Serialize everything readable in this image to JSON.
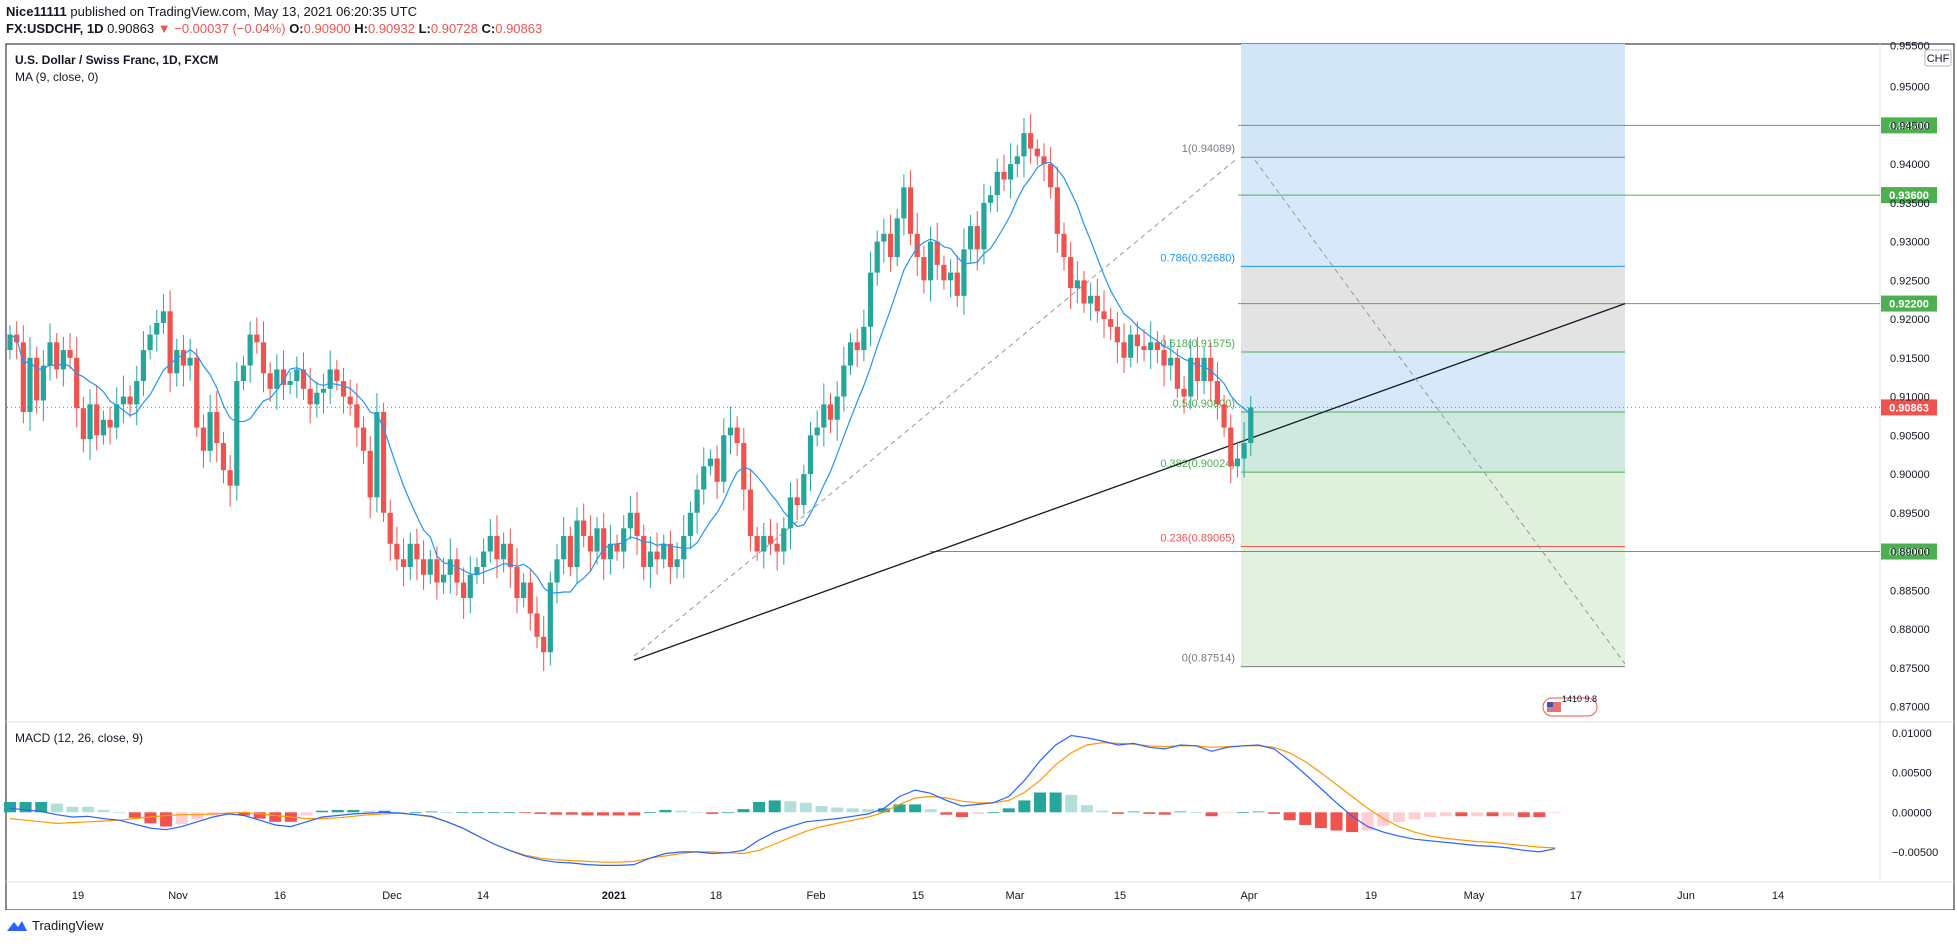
{
  "header": {
    "publisher": "Nice11111",
    "published_text": "published on TradingView.com, May 13, 2021 06:20:35 UTC",
    "symbol_line": {
      "symbol": "FX:USDCHF, 1D",
      "last": "0.90863",
      "change": "▼ −0.00037 (−0.04%)",
      "o_label": "O:",
      "o": "0.90900",
      "h_label": "H:",
      "h": "0.90932",
      "l_label": "L:",
      "l": "0.90728",
      "c_label": "C:",
      "c": "0.90863"
    }
  },
  "main_pane": {
    "title": "U.S. Dollar / Swiss Franc, 1D, FXCM",
    "indicator": "MA (9, close, 0)",
    "currency_badge": "CHF",
    "watermark_text": "1410 9.8"
  },
  "macd_pane": {
    "title": "MACD (12, 26, close, 9)"
  },
  "footer": {
    "brand": "TradingView"
  },
  "colors": {
    "up": "#26a69a",
    "down": "#ef5350",
    "ma": "#2196f3",
    "macd_line": "#2962ff",
    "signal_line": "#ff9800",
    "level_green": "#4caf50"
  },
  "chart_data": {
    "type": "candlestick",
    "price_axis": {
      "range": [
        0.868,
        0.9555
      ],
      "ticks": [
        "0.95000",
        "0.94500",
        "0.94000",
        "0.93500",
        "0.93000",
        "0.92500",
        "0.92000",
        "0.91500",
        "0.91000",
        "0.90500",
        "0.90000",
        "0.89500",
        "0.89000",
        "0.88500",
        "0.88000",
        "0.87500",
        "0.87000"
      ],
      "top_partial_label": "0.95500"
    },
    "time_axis": {
      "labels": [
        "19",
        "Nov",
        "16",
        "Dec",
        "14",
        "2021",
        "18",
        "Feb",
        "15",
        "Mar",
        "15",
        "Apr",
        "19",
        "May",
        "17",
        "Jun",
        "14"
      ]
    },
    "ma_period": 9,
    "closes": [
      0.918,
      0.917,
      0.908,
      0.915,
      0.9095,
      0.914,
      0.917,
      0.9135,
      0.916,
      0.915,
      0.9085,
      0.9045,
      0.909,
      0.905,
      0.907,
      0.906,
      0.909,
      0.91,
      0.909,
      0.912,
      0.916,
      0.918,
      0.9195,
      0.921,
      0.913,
      0.916,
      0.914,
      0.915,
      0.906,
      0.903,
      0.908,
      0.904,
      0.9005,
      0.8985,
      0.912,
      0.914,
      0.918,
      0.917,
      0.913,
      0.911,
      0.9135,
      0.9115,
      0.912,
      0.9135,
      0.911,
      0.909,
      0.9105,
      0.911,
      0.9135,
      0.912,
      0.91,
      0.909,
      0.906,
      0.903,
      0.897,
      0.908,
      0.895,
      0.891,
      0.889,
      0.888,
      0.891,
      0.889,
      0.887,
      0.889,
      0.886,
      0.887,
      0.889,
      0.886,
      0.884,
      0.887,
      0.888,
      0.89,
      0.892,
      0.889,
      0.891,
      0.888,
      0.884,
      0.886,
      0.882,
      0.879,
      0.877,
      0.886,
      0.889,
      0.892,
      0.888,
      0.894,
      0.892,
      0.89,
      0.893,
      0.889,
      0.891,
      0.89,
      0.893,
      0.895,
      0.892,
      0.888,
      0.89,
      0.889,
      0.891,
      0.888,
      0.889,
      0.892,
      0.895,
      0.898,
      0.901,
      0.902,
      0.899,
      0.905,
      0.906,
      0.904,
      0.898,
      0.892,
      0.89,
      0.892,
      0.891,
      0.89,
      0.893,
      0.897,
      0.896,
      0.9,
      0.905,
      0.906,
      0.909,
      0.907,
      0.91,
      0.914,
      0.917,
      0.916,
      0.919,
      0.926,
      0.93,
      0.931,
      0.928,
      0.933,
      0.937,
      0.931,
      0.928,
      0.925,
      0.93,
      0.927,
      0.925,
      0.926,
      0.923,
      0.929,
      0.932,
      0.929,
      0.935,
      0.936,
      0.939,
      0.938,
      0.94,
      0.941,
      0.944,
      0.942,
      0.941,
      0.94,
      0.937,
      0.931,
      0.928,
      0.924,
      0.925,
      0.922,
      0.923,
      0.921,
      0.92,
      0.919,
      0.917,
      0.915,
      0.918,
      0.9165,
      0.916,
      0.917,
      0.916,
      0.914,
      0.915,
      0.911,
      0.91,
      0.915,
      0.912,
      0.915,
      0.912,
      0.909,
      0.906,
      0.901,
      0.902,
      0.904,
      0.9086
    ],
    "last_price_label": "0.90863",
    "fibonacci": {
      "levels": [
        {
          "label": "1(0.94089)",
          "value": 0.94089
        },
        {
          "label": "0.786(0.92680)",
          "value": 0.9268
        },
        {
          "label": "0.618(0.91575)",
          "value": 0.91575
        },
        {
          "label": "0.5(0.90800)",
          "value": 0.908
        },
        {
          "label": "0.382(0.90024)",
          "value": 0.90024
        },
        {
          "label": "0.236(0.89065)",
          "value": 0.89065
        },
        {
          "label": "0(0.87514)",
          "value": 0.87514
        }
      ],
      "swing_high": 0.94089,
      "swing_low": 0.87514
    },
    "horizontal_levels": [
      {
        "label": "0.94500",
        "value": 0.945
      },
      {
        "label": "0.93600",
        "value": 0.936
      },
      {
        "label": "0.92200",
        "value": 0.922
      },
      {
        "label": "0.89000",
        "value": 0.89
      }
    ],
    "trendline": {
      "from": 0.876,
      "to": 0.922
    },
    "macd": {
      "range": [
        -0.0088,
        0.0114
      ],
      "ticks": [
        "0.01000",
        "0.00500",
        "0.00000",
        "−0.00500"
      ],
      "macd_line": [
        0.0005,
        0.0003,
        0.0001,
        -0.0003,
        -0.0006,
        -0.0005,
        -0.0008,
        -0.001,
        -0.0015,
        -0.002,
        -0.0022,
        -0.0018,
        -0.0012,
        -0.0006,
        -0.0002,
        -0.0004,
        -0.001,
        -0.0016,
        -0.0018,
        -0.0012,
        -0.0006,
        -0.0004,
        -0.0002,
        -0.0001,
        0.0,
        -0.0001,
        -0.0003,
        -0.0005,
        -0.0012,
        -0.002,
        -0.003,
        -0.004,
        -0.0048,
        -0.0055,
        -0.006,
        -0.0063,
        -0.0064,
        -0.0066,
        -0.0067,
        -0.0067,
        -0.0066,
        -0.0058,
        -0.0052,
        -0.005,
        -0.005,
        -0.0052,
        -0.0051,
        -0.0048,
        -0.0035,
        -0.0025,
        -0.0018,
        -0.0012,
        -0.001,
        -0.0008,
        -0.0005,
        -0.0002,
        0.0005,
        0.002,
        0.0028,
        0.0024,
        0.0015,
        0.0008,
        0.001,
        0.0012,
        0.002,
        0.004,
        0.0065,
        0.0085,
        0.0097,
        0.0094,
        0.009,
        0.0085,
        0.0087,
        0.0082,
        0.008,
        0.0085,
        0.0084,
        0.0077,
        0.0082,
        0.0084,
        0.0085,
        0.008,
        0.0065,
        0.0048,
        0.003,
        0.0012,
        -0.0005,
        -0.0018,
        -0.0025,
        -0.003,
        -0.0034,
        -0.0036,
        -0.0038,
        -0.004,
        -0.0042,
        -0.0043,
        -0.0045,
        -0.0048,
        -0.005,
        -0.0046
      ],
      "signal_line": [
        -0.0008,
        -0.001,
        -0.0012,
        -0.0014,
        -0.0013,
        -0.0012,
        -0.0011,
        -0.001,
        -0.0008,
        -0.0006,
        -0.0004,
        -0.0003,
        -0.0003,
        -0.0002,
        -0.0001,
        0.0,
        -0.0002,
        -0.0004,
        -0.0006,
        -0.0008,
        -0.0008,
        -0.0007,
        -0.0005,
        -0.0003,
        -0.0002,
        -0.0001,
        -0.0003,
        -0.0006,
        -0.0012,
        -0.002,
        -0.003,
        -0.004,
        -0.0048,
        -0.0054,
        -0.0058,
        -0.006,
        -0.0061,
        -0.0062,
        -0.0063,
        -0.0063,
        -0.0062,
        -0.0058,
        -0.0055,
        -0.0052,
        -0.005,
        -0.005,
        -0.0051,
        -0.0052,
        -0.0048,
        -0.004,
        -0.0032,
        -0.0024,
        -0.0018,
        -0.0014,
        -0.001,
        -0.0006,
        0.0,
        0.001,
        0.0018,
        0.002,
        0.0018,
        0.0014,
        0.0012,
        0.0012,
        0.0015,
        0.0025,
        0.004,
        0.006,
        0.0075,
        0.0085,
        0.0088,
        0.0087,
        0.0086,
        0.0084,
        0.0083,
        0.0084,
        0.0084,
        0.0082,
        0.0083,
        0.0084,
        0.0084,
        0.0082,
        0.0075,
        0.0064,
        0.005,
        0.0035,
        0.002,
        0.0005,
        -0.0008,
        -0.0018,
        -0.0025,
        -0.003,
        -0.0033,
        -0.0035,
        -0.0037,
        -0.0038,
        -0.004,
        -0.0042,
        -0.0044,
        -0.0045
      ],
      "histogram_note": "MACD − signal"
    }
  }
}
